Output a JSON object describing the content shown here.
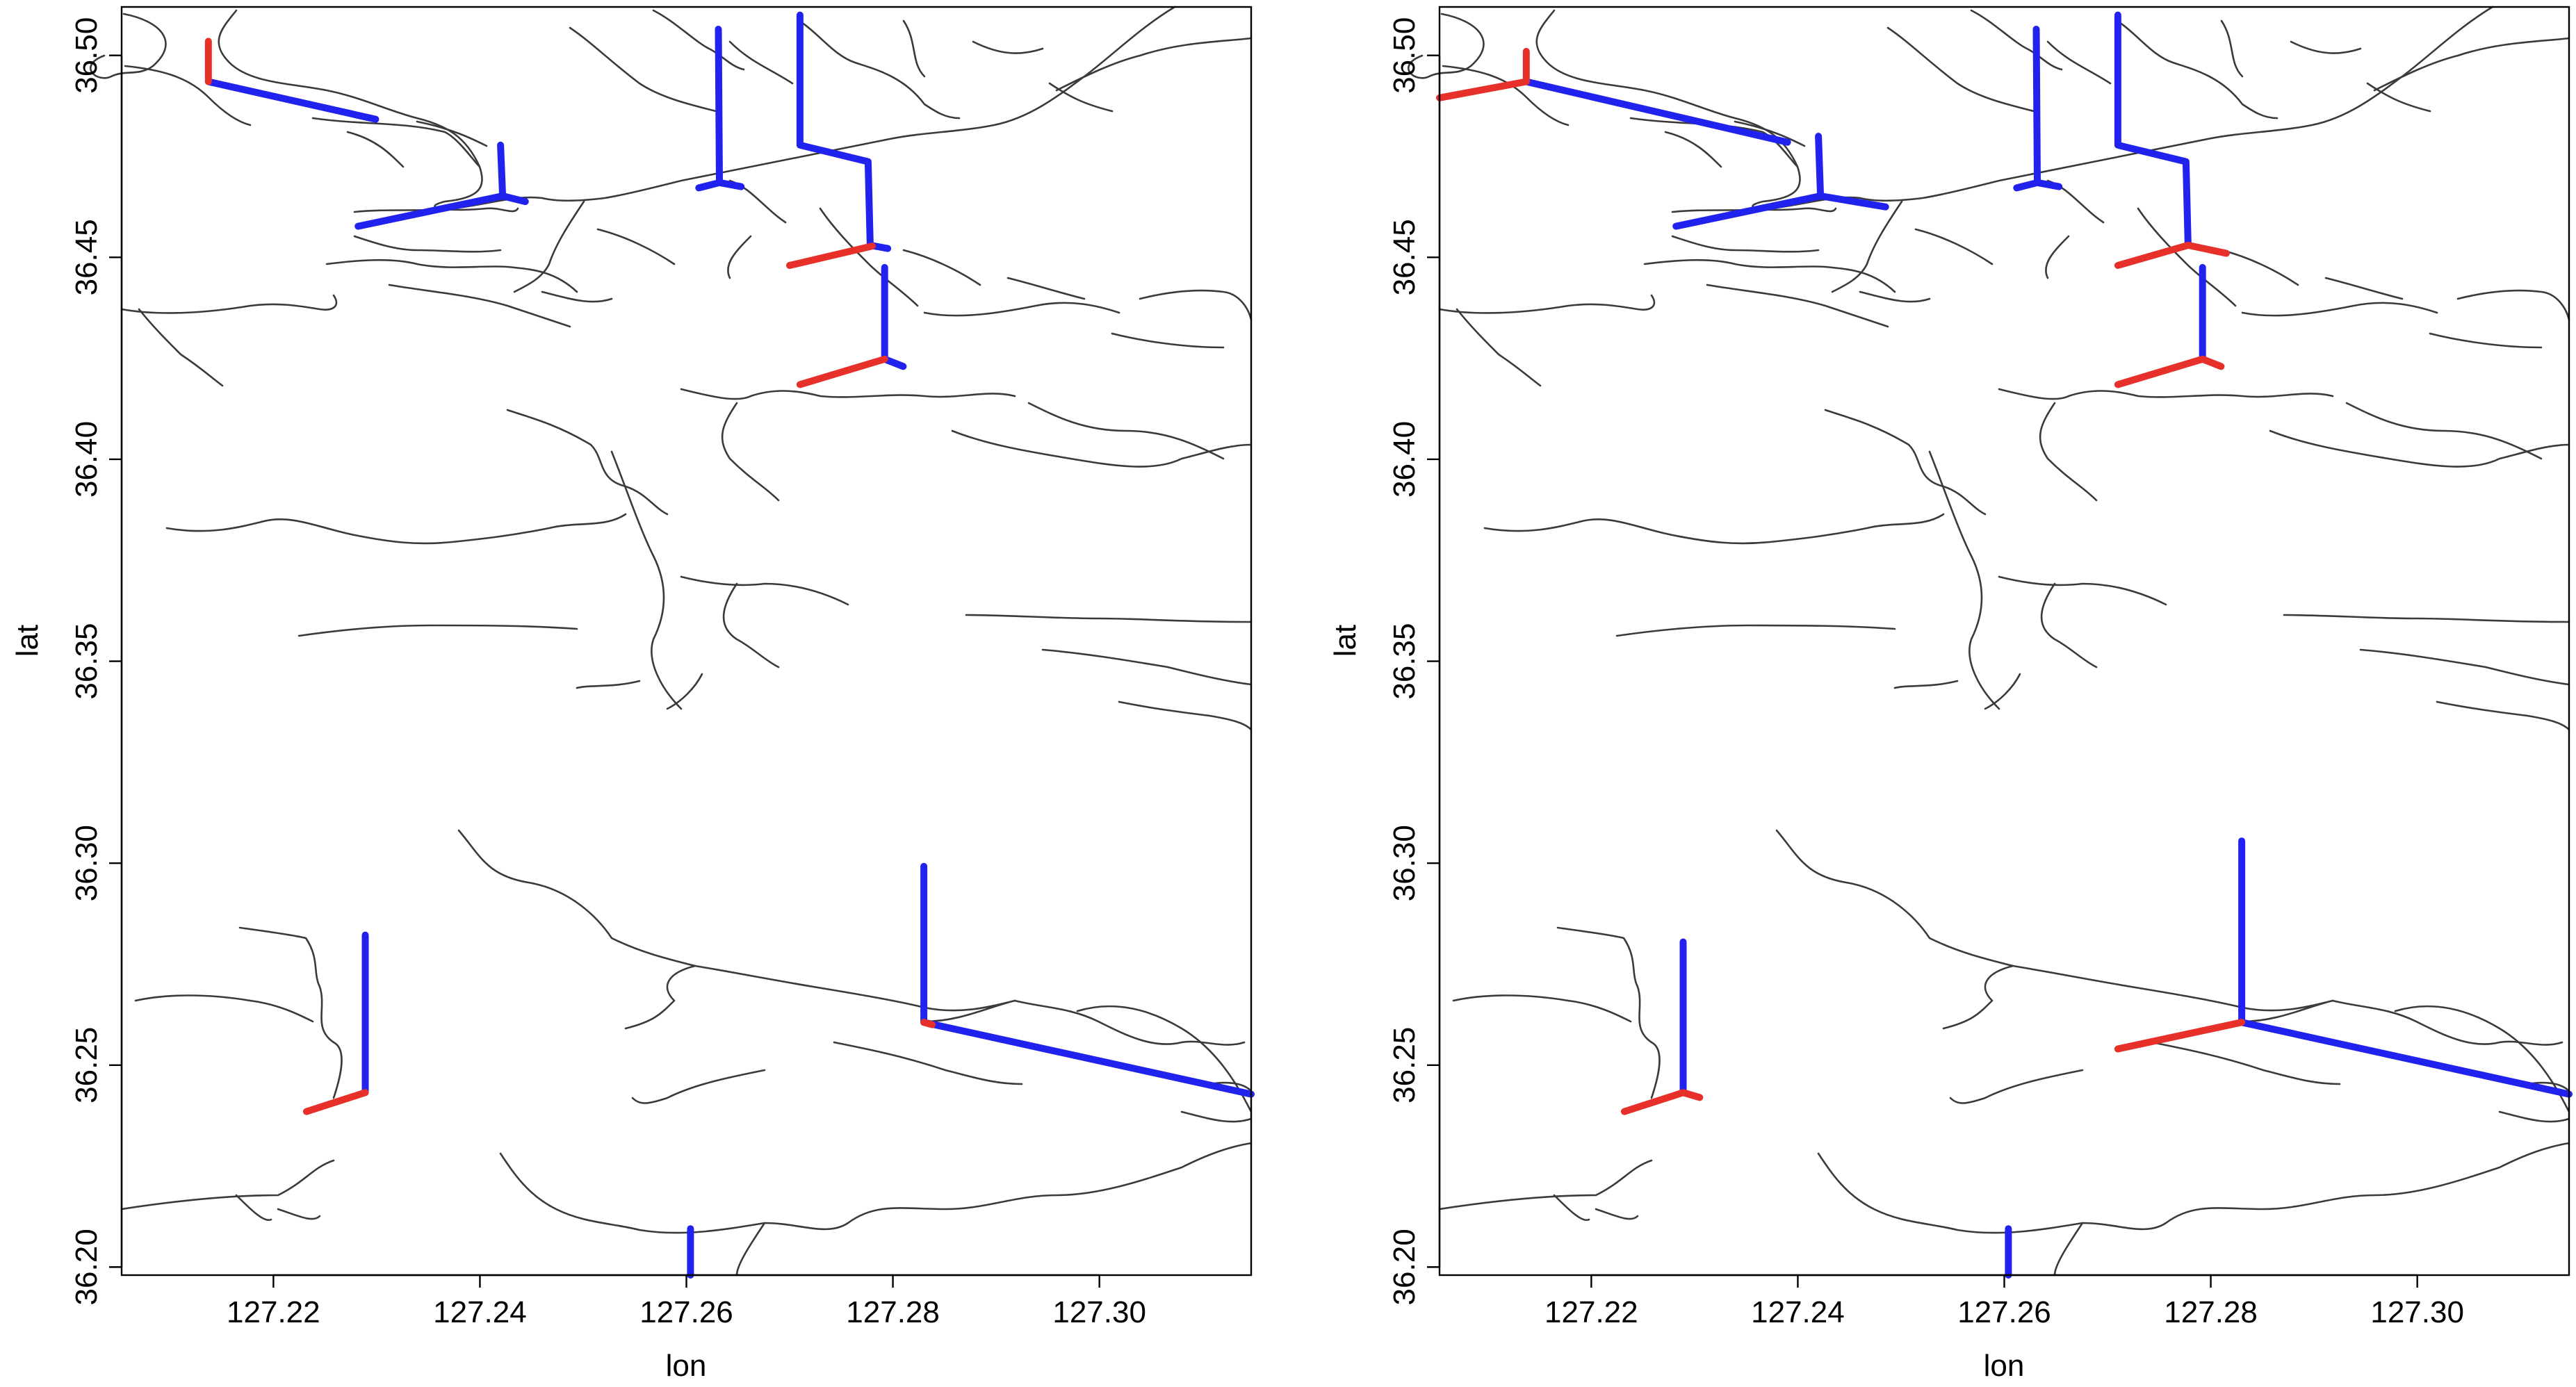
{
  "colors": {
    "upstream": "#2222ee",
    "downstream": "#e8302a",
    "river": "#3a3a3a"
  },
  "chart_data": [
    {
      "type": "line",
      "title": "",
      "xlabel": "lon",
      "ylabel": "lat",
      "xlim": [
        127.2053,
        127.3147
      ],
      "ylim": [
        36.198,
        36.512
      ],
      "xticks": [
        127.22,
        127.24,
        127.26,
        127.28,
        127.3
      ],
      "xtick_labels": [
        "127.22",
        "127.24",
        "127.26",
        "127.28",
        "127.30"
      ],
      "yticks": [
        36.2,
        36.25,
        36.3,
        36.35,
        36.4,
        36.45,
        36.5
      ],
      "ytick_labels": [
        "36.20",
        "36.25",
        "36.30",
        "36.35",
        "36.40",
        "36.45",
        "36.50"
      ],
      "grid": false,
      "series": [
        {
          "color": "blue",
          "segments": [
            [
              [
                127.2137,
                36.4935
              ],
              [
                127.2299,
                36.4842
              ]
            ],
            [
              [
                127.2282,
                36.4577
              ],
              [
                127.2422,
                36.4652
              ],
              [
                127.2444,
                36.4638
              ]
            ],
            [
              [
                127.2422,
                36.4652
              ],
              [
                127.242,
                36.4778
              ]
            ],
            [
              [
                127.2631,
                36.5065
              ],
              [
                127.2632,
                36.4685
              ],
              [
                127.2653,
                36.4675
              ]
            ],
            [
              [
                127.2632,
                36.4685
              ],
              [
                127.2612,
                36.4672
              ]
            ],
            [
              [
                127.271,
                36.51
              ],
              [
                127.271,
                36.4778
              ],
              [
                127.2776,
                36.4737
              ],
              [
                127.2778,
                36.453
              ],
              [
                127.2795,
                36.4522
              ]
            ],
            [
              [
                127.2792,
                36.4475
              ],
              [
                127.2792,
                36.4248
              ],
              [
                127.281,
                36.423
              ]
            ],
            [
              [
                127.2289,
                36.2822
              ],
              [
                127.2289,
                36.2432
              ]
            ],
            [
              [
                127.283,
                36.2992
              ],
              [
                127.283,
                36.2606
              ],
              [
                127.3147,
                36.2428
              ]
            ],
            [
              [
                127.2604,
                36.2095
              ],
              [
                127.2604,
                36.198
              ]
            ]
          ]
        },
        {
          "color": "red",
          "segments": [
            [
              [
                127.2137,
                36.4935
              ],
              [
                127.2137,
                36.5035
              ]
            ],
            [
              [
                127.27,
                36.448
              ],
              [
                127.278,
                36.4528
              ]
            ],
            [
              [
                127.271,
                36.4185
              ],
              [
                127.2792,
                36.4248
              ]
            ],
            [
              [
                127.2232,
                36.2385
              ],
              [
                127.2289,
                36.2432
              ]
            ],
            [
              [
                127.283,
                36.2606
              ],
              [
                127.2838,
                36.26
              ]
            ]
          ]
        }
      ]
    },
    {
      "type": "line",
      "title": "",
      "xlabel": "lon",
      "ylabel": "lat",
      "xlim": [
        127.2053,
        127.3147
      ],
      "ylim": [
        36.198,
        36.512
      ],
      "xticks": [
        127.22,
        127.24,
        127.26,
        127.28,
        127.3
      ],
      "xtick_labels": [
        "127.22",
        "127.24",
        "127.26",
        "127.28",
        "127.30"
      ],
      "yticks": [
        36.2,
        36.25,
        36.3,
        36.35,
        36.4,
        36.45,
        36.5
      ],
      "ytick_labels": [
        "36.20",
        "36.25",
        "36.30",
        "36.35",
        "36.40",
        "36.45",
        "36.50"
      ],
      "grid": false,
      "series": [
        {
          "color": "blue",
          "segments": [
            [
              [
                127.2137,
                36.4935
              ],
              [
                127.239,
                36.4785
              ]
            ],
            [
              [
                127.2282,
                36.4577
              ],
              [
                127.2422,
                36.4652
              ],
              [
                127.2485,
                36.4625
              ]
            ],
            [
              [
                127.2422,
                36.4652
              ],
              [
                127.242,
                36.48
              ]
            ],
            [
              [
                127.2631,
                36.5065
              ],
              [
                127.2632,
                36.4685
              ],
              [
                127.2653,
                36.4675
              ]
            ],
            [
              [
                127.2632,
                36.4685
              ],
              [
                127.2612,
                36.4672
              ]
            ],
            [
              [
                127.271,
                36.51
              ],
              [
                127.271,
                36.4778
              ],
              [
                127.2776,
                36.4737
              ],
              [
                127.2778,
                36.453
              ]
            ],
            [
              [
                127.2792,
                36.4475
              ],
              [
                127.2792,
                36.4248
              ]
            ],
            [
              [
                127.2289,
                36.2805
              ],
              [
                127.2289,
                36.2432
              ]
            ],
            [
              [
                127.283,
                36.3055
              ],
              [
                127.283,
                36.2606
              ],
              [
                127.3147,
                36.2428
              ]
            ],
            [
              [
                127.2604,
                36.2095
              ],
              [
                127.2604,
                36.198
              ]
            ]
          ]
        },
        {
          "color": "red",
          "segments": [
            [
              [
                127.2053,
                36.4895
              ],
              [
                127.2137,
                36.4935
              ],
              [
                127.2137,
                36.501
              ]
            ],
            [
              [
                127.271,
                36.448
              ],
              [
                127.2778,
                36.453
              ],
              [
                127.2815,
                36.451
              ]
            ],
            [
              [
                127.271,
                36.4185
              ],
              [
                127.2792,
                36.4248
              ],
              [
                127.281,
                36.423
              ]
            ],
            [
              [
                127.2232,
                36.2385
              ],
              [
                127.2289,
                36.2432
              ],
              [
                127.2305,
                36.242
              ]
            ],
            [
              [
                127.271,
                36.254
              ],
              [
                127.283,
                36.2606
              ]
            ]
          ]
        }
      ]
    }
  ]
}
